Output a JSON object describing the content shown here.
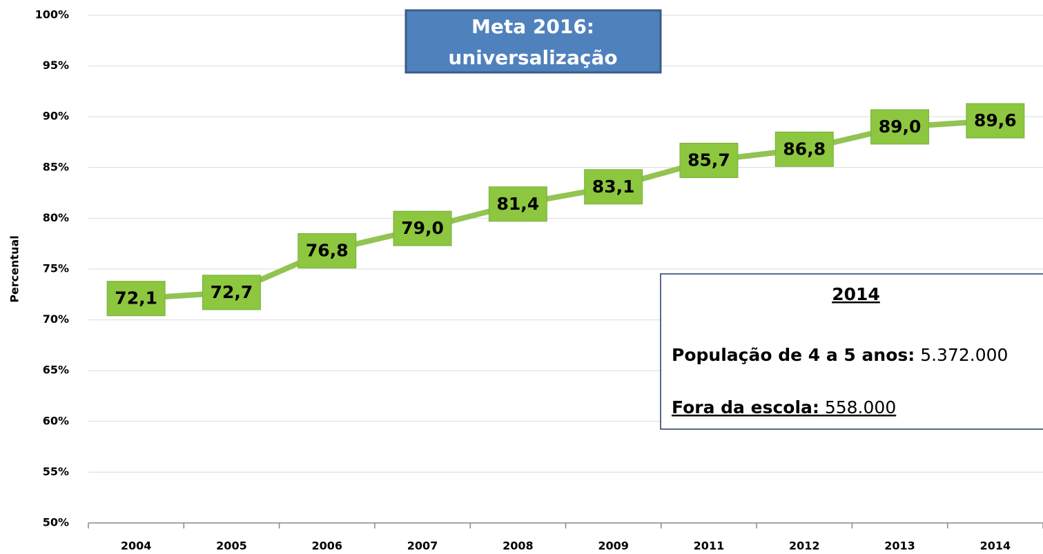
{
  "chart_data": {
    "type": "line",
    "y_label": "Percentual",
    "categories": [
      "2004",
      "2005",
      "2006",
      "2007",
      "2008",
      "2009",
      "2011",
      "2012",
      "2013",
      "2014"
    ],
    "values": [
      72.1,
      72.7,
      76.8,
      79.0,
      81.4,
      83.1,
      85.7,
      86.8,
      89.0,
      89.6
    ],
    "value_labels": [
      "72,1",
      "72,7",
      "76,8",
      "79,0",
      "81,4",
      "83,1",
      "85,7",
      "86,8",
      "89,0",
      "89,6"
    ],
    "color": "#92c353",
    "label_fill": "#8dc63f",
    "ylim": [
      50,
      100
    ],
    "yticks": [
      {
        "value": 50,
        "label": "50%"
      },
      {
        "value": 55,
        "label": "55%"
      },
      {
        "value": 60,
        "label": "60%"
      },
      {
        "value": 65,
        "label": "65%"
      },
      {
        "value": 70,
        "label": "70%"
      },
      {
        "value": 75,
        "label": "75%"
      },
      {
        "value": 80,
        "label": "80%"
      },
      {
        "value": 85,
        "label": "85%"
      },
      {
        "value": 90,
        "label": "90%"
      },
      {
        "value": 95,
        "label": "95%"
      },
      {
        "value": 100,
        "label": "100%"
      }
    ],
    "grid": true,
    "goal_box": [
      "Meta 2016:",
      "universalização"
    ],
    "info_box": {
      "title": "2014",
      "lines": [
        {
          "label": "População de 4 a 5 anos:",
          "value": "5.372.000"
        },
        {
          "label": "Fora da escola:",
          "value": "558.000"
        }
      ]
    }
  }
}
